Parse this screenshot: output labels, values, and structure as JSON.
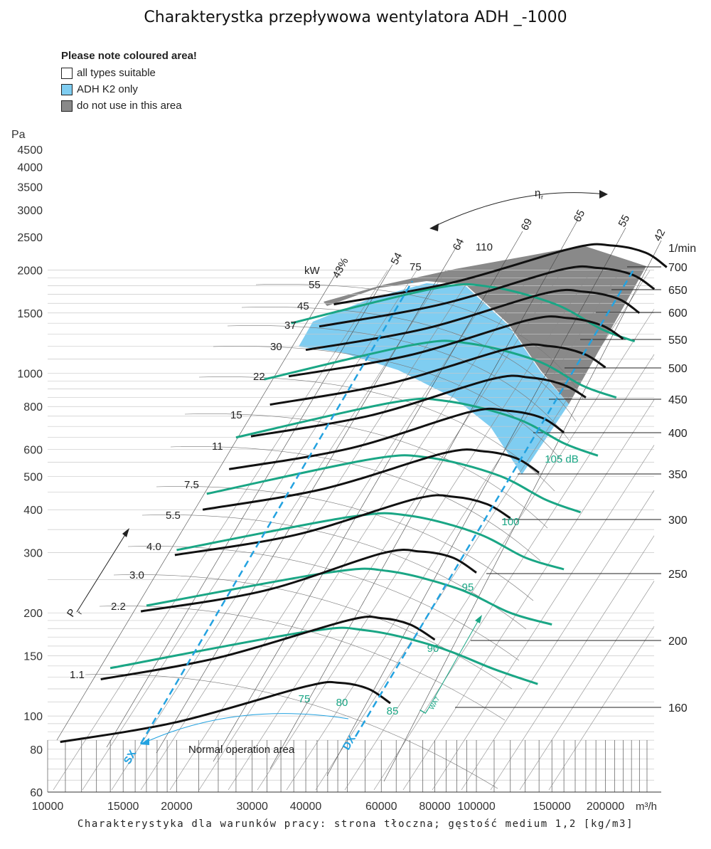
{
  "title": "Charakterystka przepływowa wentylatora ADH _-1000",
  "footer": "Charakterystyka dla warunków pracy: strona tłoczna; gęstość medium 1,2 [kg/m3]",
  "legend": {
    "heading": "Please note coloured area!",
    "items": [
      {
        "label": "all types suitable",
        "color": "#ffffff"
      },
      {
        "label": "ADH K2 only",
        "color": "#7fcdf1"
      },
      {
        "label": "do not use in this area",
        "color": "#898989"
      }
    ]
  },
  "chart_data": {
    "type": "line",
    "xscale": "log",
    "yscale": "log",
    "xlabel": "m³/h",
    "ylabel": "Pa",
    "xlim": [
      10000,
      250000
    ],
    "ylim": [
      60,
      5000
    ],
    "x_ticks": [
      10000,
      15000,
      20000,
      30000,
      40000,
      60000,
      80000,
      100000,
      150000,
      200000
    ],
    "x_tick_labels": [
      "10000",
      "15000",
      "20000",
      "30000",
      "40000",
      "60000",
      "80000",
      "100000",
      "150000",
      "200000"
    ],
    "y_ticks": [
      60,
      80,
      100,
      150,
      200,
      300,
      400,
      500,
      600,
      800,
      1000,
      1500,
      2000,
      2500,
      3000,
      3500,
      4000,
      4500
    ],
    "y_tick_labels": [
      "60",
      "80",
      "100",
      "150",
      "200",
      "300",
      "400",
      "500",
      "600",
      "800",
      "1000",
      "1500",
      "2000",
      "2500",
      "3000",
      "3500",
      "4000",
      "4500"
    ],
    "speed_unit": "1/min",
    "speed_labels": [
      "160",
      "200",
      "250",
      "300",
      "350",
      "400",
      "450",
      "500",
      "550",
      "600",
      "650",
      "700"
    ],
    "speed_curves": [
      {
        "rpm": 160,
        "points": [
          [
            10700,
            84
          ],
          [
            20000,
            96
          ],
          [
            40000,
            122
          ],
          [
            48000,
            125
          ],
          [
            56000,
            120
          ],
          [
            63000,
            109
          ]
        ]
      },
      {
        "rpm": 200,
        "points": [
          [
            13300,
            128
          ],
          [
            25000,
            148
          ],
          [
            50000,
            190
          ],
          [
            60000,
            193
          ],
          [
            70000,
            185
          ],
          [
            80000,
            167
          ]
        ]
      },
      {
        "rpm": 250,
        "points": [
          [
            16500,
            202
          ],
          [
            32000,
            232
          ],
          [
            60000,
            298
          ],
          [
            74000,
            302
          ],
          [
            88000,
            290
          ],
          [
            100000,
            262
          ]
        ]
      },
      {
        "rpm": 300,
        "points": [
          [
            19800,
            295
          ],
          [
            38000,
            338
          ],
          [
            72000,
            430
          ],
          [
            89000,
            436
          ],
          [
            106000,
            415
          ],
          [
            120000,
            378
          ]
        ]
      },
      {
        "rpm": 350,
        "points": [
          [
            23000,
            400
          ],
          [
            44000,
            460
          ],
          [
            84000,
            585
          ],
          [
            104000,
            592
          ],
          [
            124000,
            565
          ],
          [
            140000,
            513
          ]
        ]
      },
      {
        "rpm": 400,
        "points": [
          [
            26500,
            525
          ],
          [
            51000,
            605
          ],
          [
            96000,
            770
          ],
          [
            118000,
            778
          ],
          [
            142000,
            742
          ],
          [
            160000,
            672
          ]
        ]
      },
      {
        "rpm": 450,
        "points": [
          [
            29800,
            655
          ],
          [
            57000,
            755
          ],
          [
            108000,
            960
          ],
          [
            133000,
            972
          ],
          [
            160000,
            925
          ],
          [
            180000,
            850
          ]
        ]
      },
      {
        "rpm": 500,
        "points": [
          [
            33000,
            810
          ],
          [
            63000,
            935
          ],
          [
            120000,
            1185
          ],
          [
            148000,
            1200
          ],
          [
            178000,
            1140
          ],
          [
            200000,
            1040
          ]
        ]
      },
      {
        "rpm": 550,
        "points": [
          [
            36500,
            980
          ],
          [
            70000,
            1130
          ],
          [
            132000,
            1430
          ],
          [
            163000,
            1450
          ],
          [
            196000,
            1380
          ],
          [
            220000,
            1260
          ]
        ]
      },
      {
        "rpm": 600,
        "points": [
          [
            40000,
            1170
          ],
          [
            76000,
            1350
          ],
          [
            144000,
            1710
          ],
          [
            178000,
            1730
          ],
          [
            214000,
            1650
          ],
          [
            240000,
            1500
          ]
        ]
      },
      {
        "rpm": 650,
        "points": [
          [
            43000,
            1370
          ],
          [
            82000,
            1585
          ],
          [
            156000,
            2000
          ],
          [
            192000,
            2030
          ],
          [
            231000,
            1940
          ],
          [
            260000,
            1760
          ]
        ]
      },
      {
        "rpm": 700,
        "points": [
          [
            46500,
            1590
          ],
          [
            88000,
            1840
          ],
          [
            168000,
            2320
          ],
          [
            207000,
            2360
          ],
          [
            248000,
            2250
          ],
          [
            278000,
            2040
          ]
        ]
      }
    ],
    "sound_level_unit": "dB",
    "sound_levels": [
      {
        "level": "75",
        "points": [
          [
            14000,
            138
          ],
          [
            40000,
            176
          ],
          [
            55000,
            178
          ],
          [
            80000,
            160
          ],
          [
            110000,
            137
          ],
          [
            139000,
            124
          ]
        ]
      },
      {
        "level": "80",
        "points": [
          [
            17000,
            210
          ],
          [
            45000,
            262
          ],
          [
            62000,
            265
          ],
          [
            90000,
            236
          ],
          [
            120000,
            200
          ],
          [
            150000,
            185
          ]
        ]
      },
      {
        "level": "85",
        "points": [
          [
            20000,
            305
          ],
          [
            50000,
            380
          ],
          [
            69000,
            385
          ],
          [
            100000,
            342
          ],
          [
            130000,
            290
          ],
          [
            160000,
            268
          ]
        ]
      },
      {
        "level": "90",
        "points": [
          [
            23500,
            445
          ],
          [
            56000,
            560
          ],
          [
            77000,
            568
          ],
          [
            112000,
            505
          ],
          [
            145000,
            428
          ],
          [
            175000,
            393
          ]
        ]
      },
      {
        "level": "95",
        "points": [
          [
            27500,
            650
          ],
          [
            63000,
            820
          ],
          [
            85000,
            830
          ],
          [
            124000,
            738
          ],
          [
            160000,
            625
          ],
          [
            192000,
            575
          ]
        ]
      },
      {
        "level": "100",
        "points": [
          [
            32000,
            960
          ],
          [
            71000,
            1210
          ],
          [
            95000,
            1225
          ],
          [
            138000,
            1090
          ],
          [
            177000,
            920
          ],
          [
            212000,
            850
          ]
        ]
      },
      {
        "level": "105 dB",
        "points": [
          [
            37000,
            1400
          ],
          [
            80000,
            1770
          ],
          [
            107000,
            1790
          ],
          [
            152000,
            1595
          ],
          [
            196000,
            1345
          ],
          [
            234000,
            1240
          ]
        ]
      }
    ],
    "power_unit": "kW",
    "power_labels": [
      "1.1",
      "2.2",
      "3.0",
      "4.0",
      "5.5",
      "7.5",
      "11",
      "15",
      "22",
      "30",
      "37",
      "45",
      "55"
    ],
    "efficiency_labels": [
      "43%",
      "54",
      "64",
      "69",
      "65",
      "55",
      "42"
    ],
    "other_labels": [
      "75",
      "110"
    ],
    "sx_label": "SX",
    "dx_label": "DX",
    "pr_label": "P",
    "pr_sub": "r",
    "eta_label": "η",
    "eta_sub": "r",
    "lwa_label": "L",
    "lwa_sub": "WA7",
    "annotation": "Normal operation area",
    "region_colors": {
      "k2": "#7fcdf1",
      "no_use": "#898989",
      "speed": "#111111",
      "sound": "#1aa685",
      "sx_dx": "#23a2e0"
    }
  }
}
